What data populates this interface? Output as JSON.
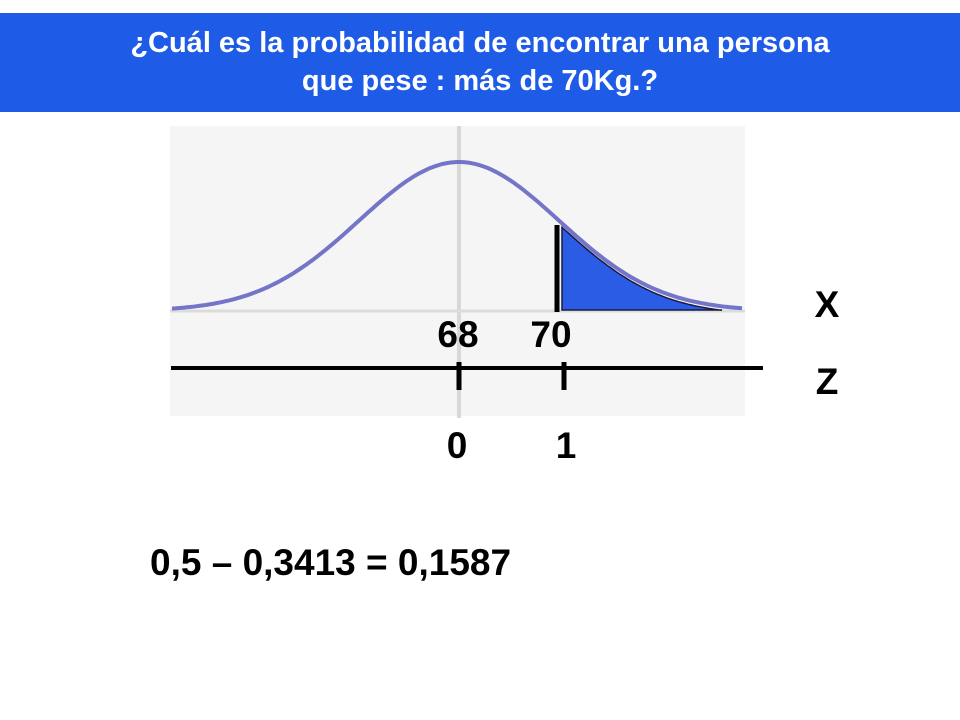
{
  "title": {
    "line1": "¿Cuál es la probabilidad de encontrar una persona",
    "line2": "que pese : más de 70Kg.?"
  },
  "diagram": {
    "x_axis_label": "X",
    "z_axis_label": "Z",
    "x_mean": "68",
    "x_value": "70",
    "z_mean": "0",
    "z_value": "1",
    "shaded_region": "right tail above X = 70 (Z = 1)"
  },
  "equation": "0,5 – 0,3413 = 0,1587",
  "colors": {
    "banner": "#1e5be6",
    "curve": "#7474c8",
    "shaded_area": "#2a5ce6",
    "axis": "#000000",
    "background_panel": "#f4f4f4"
  }
}
